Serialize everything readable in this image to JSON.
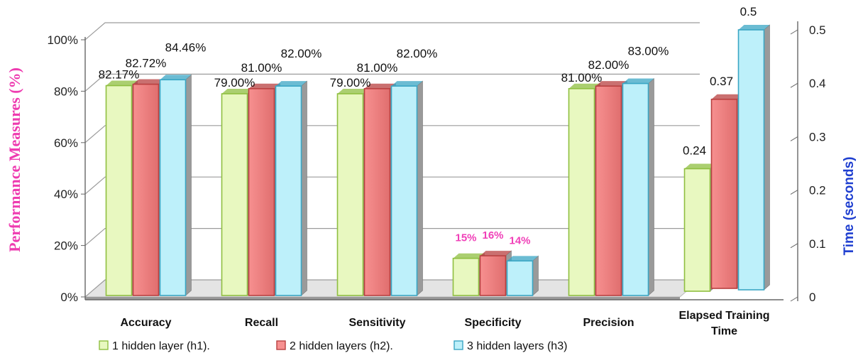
{
  "chart_data": {
    "type": "bar",
    "categories": [
      "Accuracy",
      "Recall",
      "Sensitivity",
      "Specificity",
      "Precision",
      "Elapsed Training Time"
    ],
    "series": [
      {
        "name": "1 hidden layer (h1).",
        "values": [
          82.17,
          79.0,
          79.0,
          15,
          81.0,
          0.24
        ],
        "labels": [
          "82.17%",
          "79.00%",
          "79.00%",
          "15%",
          "81.00%",
          "0.24"
        ]
      },
      {
        "name": "2 hidden layers (h2).",
        "values": [
          82.72,
          81.0,
          81.0,
          16,
          82.0,
          0.37
        ],
        "labels": [
          "82.72%",
          "81.00%",
          "81.00%",
          "16%",
          "82.00%",
          "0.37"
        ]
      },
      {
        "name": "3 hidden layers (h3)",
        "values": [
          84.46,
          82.0,
          82.0,
          14,
          83.0,
          0.5
        ],
        "labels": [
          "84.46%",
          "82.00%",
          "82.00%",
          "14%",
          "83.00%",
          "0.5"
        ]
      }
    ],
    "ylabel": "Performance Measures (%)",
    "y2label": "Time (seconds)",
    "ylim": [
      0,
      100
    ],
    "y2lim": [
      0,
      0.5
    ],
    "yticks": [
      "0%",
      "20%",
      "40%",
      "60%",
      "80%",
      "100%"
    ],
    "y2ticks": [
      "0",
      "0.1",
      "0.2",
      "0.3",
      "0.4",
      "0.5"
    ],
    "secondary_axis_categories": [
      "Elapsed Training Time"
    ],
    "grid": true,
    "legend_position": "bottom",
    "colors": {
      "series_fill": [
        "#e8f8c0",
        "#f79090",
        "#bdf0fa"
      ],
      "series_edge": [
        "#8fbf40",
        "#b84040",
        "#3aa6c4"
      ],
      "ylabel_color": "#ee3bb0",
      "y2label_color": "#1f3fd0",
      "small_label_color": "#f040b8"
    }
  }
}
